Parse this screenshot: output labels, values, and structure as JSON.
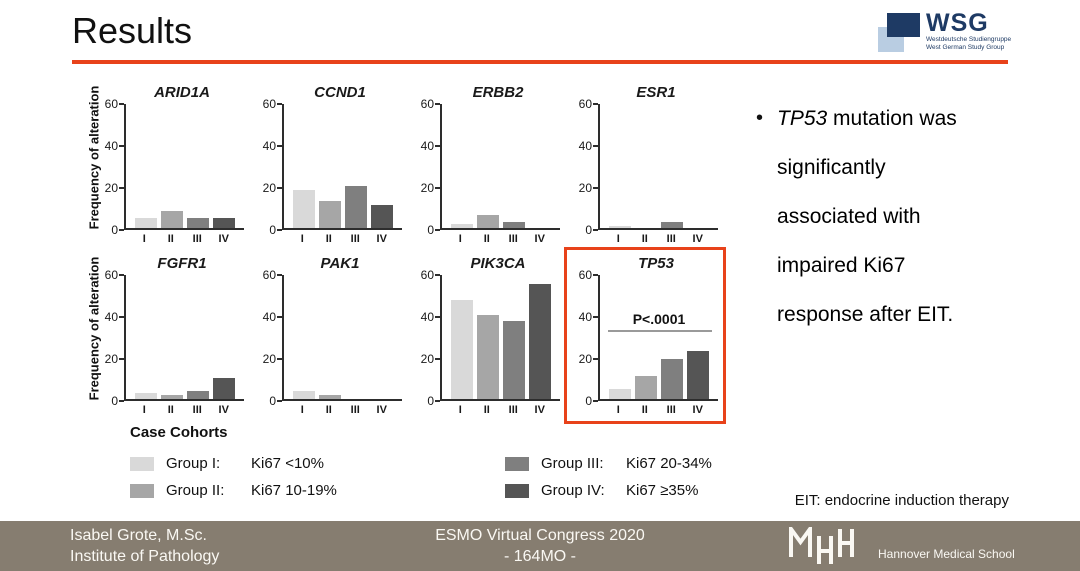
{
  "slide": {
    "title": "Results",
    "accent_color": "#e8421a",
    "bullet": {
      "gene": "TP53",
      "rest": " mutation was significantly associated with impaired Ki67 response after EIT."
    },
    "footnote": "EIT: endocrine induction therapy"
  },
  "wsg_logo": {
    "acronym": "WSG",
    "line1": "Westdeutsche Studiengruppe",
    "line2": "West German Study Group",
    "navy": "#1e3a64",
    "light_blue": "#b9cde2"
  },
  "chart_data": {
    "type": "bar",
    "categories": [
      "I",
      "II",
      "III",
      "IV"
    ],
    "ylabel": "Frequency of alteration",
    "ylim": [
      0,
      60
    ],
    "yticks": [
      0,
      20,
      40,
      60
    ],
    "grid": false,
    "group_colors": [
      "#d9d9d9",
      "#a6a6a6",
      "#7f7f7f",
      "#555555"
    ],
    "panels": [
      {
        "gene": "ARID1A",
        "values": [
          5,
          8,
          5,
          5
        ]
      },
      {
        "gene": "CCND1",
        "values": [
          18,
          13,
          20,
          11
        ]
      },
      {
        "gene": "ERBB2",
        "values": [
          2,
          6,
          3,
          0
        ]
      },
      {
        "gene": "ESR1",
        "values": [
          1,
          0,
          3,
          0
        ]
      },
      {
        "gene": "FGFR1",
        "values": [
          3,
          2,
          4,
          10
        ]
      },
      {
        "gene": "PAK1",
        "values": [
          4,
          2,
          0,
          0
        ]
      },
      {
        "gene": "PIK3CA",
        "values": [
          47,
          40,
          37,
          55
        ]
      },
      {
        "gene": "TP53",
        "values": [
          5,
          11,
          19,
          23
        ],
        "highlighted": true,
        "annotation": {
          "text": "P<.0001",
          "line_y": 32
        }
      }
    ]
  },
  "legend": {
    "title": "Case Cohorts",
    "items": [
      {
        "swatch": "#d9d9d9",
        "label": "Group  I:",
        "value": "Ki67 <10%"
      },
      {
        "swatch": "#a6a6a6",
        "label": "Group II:",
        "value": "Ki67 10-19%"
      },
      {
        "swatch": "#7f7f7f",
        "label": "Group III:",
        "value": "Ki67 20-34%"
      },
      {
        "swatch": "#555555",
        "label": "Group IV:",
        "value": "Ki67 ≥35%"
      }
    ]
  },
  "footer": {
    "bg_color": "#867d70",
    "author_line1": "Isabel Grote, M.Sc.",
    "author_line2": "Institute of Pathology",
    "center_line1": "ESMO Virtual Congress 2020",
    "center_line2": "- 164MO -",
    "logo_acronym": "MHH",
    "logo_text": "Hannover Medical School"
  }
}
